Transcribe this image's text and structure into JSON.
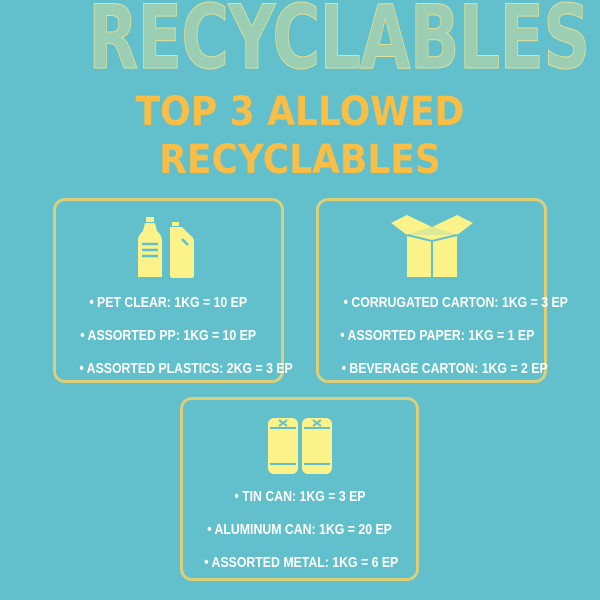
{
  "background_word": "RECYCLABLES",
  "title": {
    "line1": "TOP 3 ALLOWED",
    "line2": "RECYCLABLES"
  },
  "colors": {
    "background": "#61c0cb",
    "title": "#f8be46",
    "card_border": "#dccf78",
    "icon": "#fbf38a",
    "text": "#ffffff"
  },
  "cards": [
    {
      "icon": "plastic-bottles-icon",
      "items": [
        "• PET CLEAR: 1KG = 10 EP",
        "• ASSORTED PP: 1KG = 10 EP",
        "• ASSORTED PLASTICS: 2KG = 3 EP"
      ]
    },
    {
      "icon": "cardboard-box-icon",
      "items": [
        "• CORRUGATED CARTON: 1KG = 3 EP",
        "• ASSORTED PAPER: 1KG = 1 EP",
        "• BEVERAGE CARTON: 1KG = 2 EP"
      ]
    },
    {
      "icon": "cans-icon",
      "items": [
        "• TIN CAN: 1KG = 3 EP",
        "• ALUMINUM CAN: 1KG = 20 EP",
        "• ASSORTED METAL: 1KG = 6 EP"
      ]
    }
  ]
}
